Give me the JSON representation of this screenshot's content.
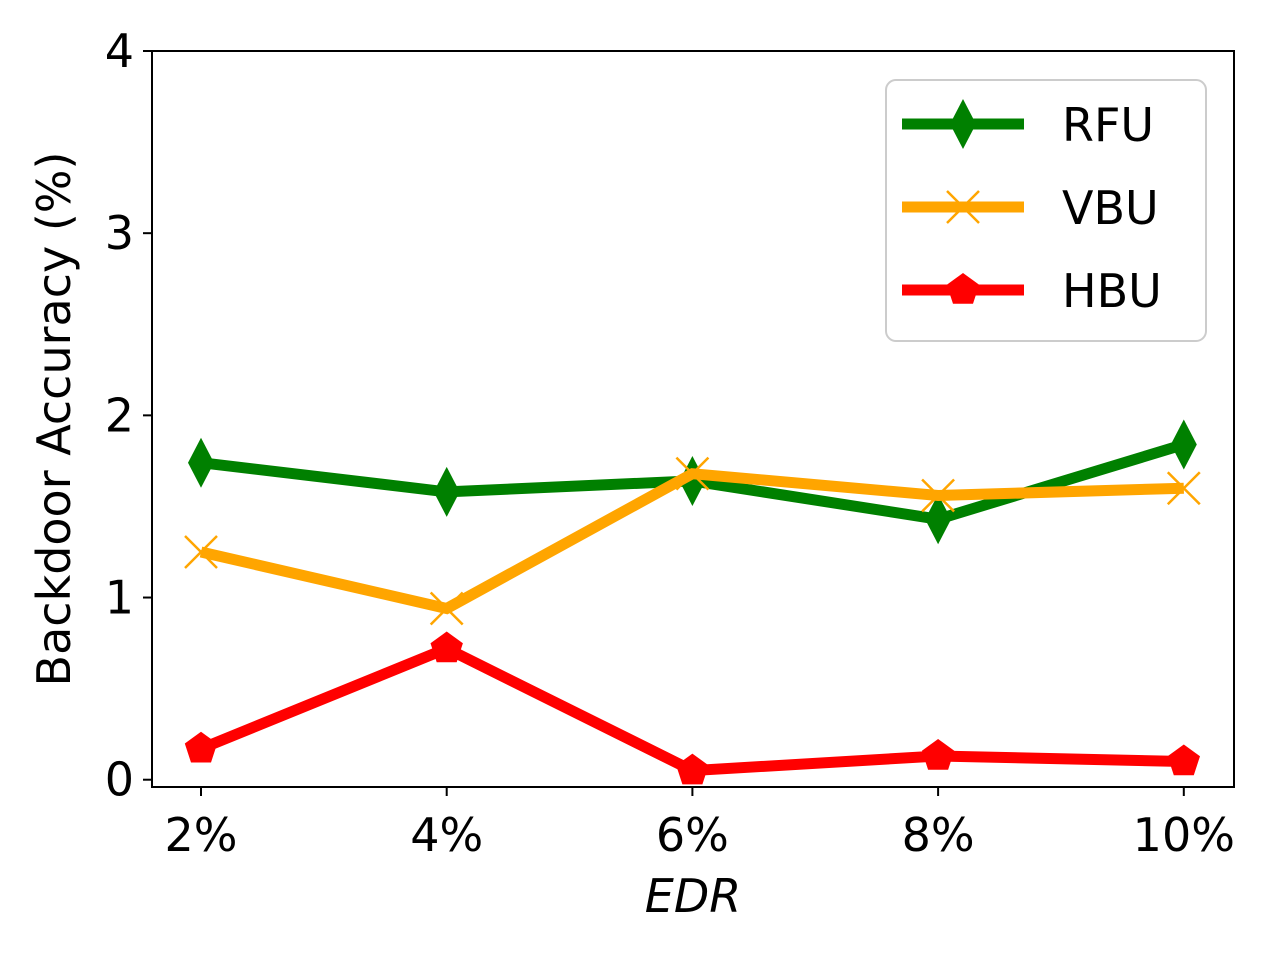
{
  "chart_data": {
    "type": "line",
    "title": "",
    "xlabel": "EDR",
    "ylabel": "Backdoor Accuracy (%)",
    "categories": [
      "2%",
      "4%",
      "6%",
      "8%",
      "10%"
    ],
    "ylim": [
      -0.04,
      4
    ],
    "yticks": [
      "0",
      "1",
      "2",
      "3",
      "4"
    ],
    "grid": false,
    "legend_position": "top-right",
    "series": [
      {
        "name": "RFU",
        "color": "#008000",
        "marker": "thin-diamond",
        "values": [
          1.74,
          1.58,
          1.64,
          1.43,
          1.84
        ]
      },
      {
        "name": "VBU",
        "color": "#FFA500",
        "marker": "x",
        "values": [
          1.25,
          0.94,
          1.68,
          1.56,
          1.6
        ]
      },
      {
        "name": "HBU",
        "color": "#FF0000",
        "marker": "pentagon",
        "values": [
          0.17,
          0.72,
          0.05,
          0.13,
          0.1
        ]
      }
    ]
  }
}
